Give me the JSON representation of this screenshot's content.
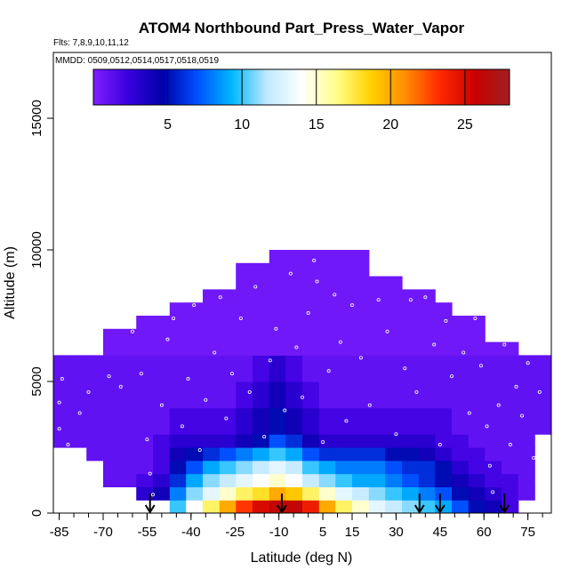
{
  "chart_data": {
    "type": "heatmap",
    "title": "ATOM4 Northbound Part_Press_Water_Vapor",
    "flights_note": "Flts: 7,8,9,10,11,12",
    "dates_note": "MMDD: 0509,0512,0514,0517,0518,0519",
    "xlabel": "Latitude (deg N)",
    "ylabel": "Altitude (m)",
    "xlim": [
      -87,
      83
    ],
    "ylim": [
      0,
      17500
    ],
    "x_ticks": [
      -85,
      -70,
      -55,
      -40,
      -25,
      -10,
      5,
      15,
      30,
      45,
      60,
      75
    ],
    "x_tick_labels": [
      "-85",
      "-70",
      "-55",
      "-40",
      "-25",
      "-10",
      "5",
      "15",
      "30",
      "45",
      "60",
      "75"
    ],
    "y_ticks": [
      0,
      5000,
      10000,
      15000
    ],
    "y_tick_labels": [
      "0",
      "5000",
      "10000",
      "15000"
    ],
    "colorbar": {
      "range": [
        0,
        28
      ],
      "ticks": [
        5,
        10,
        15,
        20,
        25
      ],
      "tick_labels": [
        "5",
        "10",
        "15",
        "20",
        "25"
      ],
      "colors": [
        "#7f1fff",
        "#3a00e0",
        "#0000a8",
        "#0050ff",
        "#00b8ff",
        "#bfe9ff",
        "#ffffff",
        "#ffff8c",
        "#ffd200",
        "#ff8c00",
        "#ff2800",
        "#c80000",
        "#a02020"
      ],
      "position": "top"
    },
    "altitude_bands_m": [
      {
        "lo": 0,
        "hi": 500,
        "values": [
          null,
          null,
          null,
          null,
          null,
          null,
          null,
          10,
          14,
          17,
          20,
          23,
          25,
          26,
          26,
          24,
          20,
          17,
          15,
          13,
          12,
          11,
          10,
          9,
          7,
          5,
          4,
          2,
          null,
          null
        ]
      },
      {
        "lo": 500,
        "hi": 1000,
        "values": [
          null,
          null,
          null,
          null,
          null,
          3,
          4,
          8,
          11,
          13,
          15,
          17,
          18,
          20,
          19,
          17,
          15,
          13,
          12,
          11,
          10,
          9,
          8,
          7,
          5,
          4,
          3,
          2,
          1,
          null
        ]
      },
      {
        "lo": 1000,
        "hi": 1500,
        "values": [
          null,
          null,
          null,
          1,
          1,
          2,
          3,
          6,
          9,
          11,
          12,
          13,
          14,
          15,
          14,
          12,
          11,
          10,
          9,
          9,
          8,
          7,
          6,
          5,
          4,
          3,
          2,
          2,
          1,
          null
        ]
      },
      {
        "lo": 1500,
        "hi": 2000,
        "values": [
          null,
          null,
          null,
          1,
          1,
          1,
          2,
          5,
          7,
          9,
          10,
          11,
          12,
          13,
          12,
          10,
          9,
          8,
          8,
          8,
          7,
          6,
          6,
          5,
          3,
          2,
          2,
          1,
          1,
          null
        ]
      },
      {
        "lo": 2000,
        "hi": 2500,
        "values": [
          null,
          null,
          1,
          1,
          1,
          1,
          2,
          4,
          5,
          6,
          7,
          8,
          9,
          10,
          9,
          7,
          6,
          6,
          6,
          6,
          5,
          5,
          4,
          3,
          2,
          2,
          1,
          1,
          1,
          null
        ]
      },
      {
        "lo": 2500,
        "hi": 3000,
        "values": [
          1,
          1,
          1,
          1,
          1,
          1,
          2,
          3,
          3,
          3,
          3,
          4,
          5,
          7,
          6,
          4,
          3,
          3,
          3,
          3,
          3,
          3,
          3,
          2,
          2,
          1,
          1,
          1,
          1,
          null
        ]
      },
      {
        "lo": 3000,
        "hi": 4000,
        "values": [
          1,
          1,
          1,
          1,
          1,
          1,
          1,
          2,
          2,
          2,
          2,
          3,
          4,
          5,
          4,
          3,
          2,
          2,
          2,
          2,
          2,
          2,
          2,
          2,
          1,
          1,
          1,
          1,
          1,
          1
        ]
      },
      {
        "lo": 4000,
        "hi": 5000,
        "values": [
          1,
          1,
          1,
          1,
          1,
          1,
          1,
          1,
          1,
          1,
          1,
          2,
          3,
          4,
          3,
          2,
          1,
          1,
          1,
          1,
          1,
          1,
          1,
          1,
          1,
          1,
          1,
          1,
          1,
          1
        ]
      },
      {
        "lo": 5000,
        "hi": 6000,
        "values": [
          1,
          1,
          1,
          1,
          1,
          1,
          1,
          1,
          1,
          1,
          1,
          1,
          2,
          3,
          2,
          1,
          1,
          1,
          1,
          1,
          1,
          1,
          1,
          1,
          1,
          1,
          1,
          1,
          1,
          1
        ]
      }
    ],
    "lat_bins_deg": [
      -87,
      -81.3,
      -75.7,
      -70,
      -64.3,
      -58.7,
      -53,
      -47.3,
      -41.7,
      -36,
      -30.3,
      -24.7,
      -19,
      -13.3,
      -7.7,
      -2,
      3.7,
      9.3,
      15,
      20.7,
      26.3,
      32,
      37.7,
      43.3,
      49,
      54.7,
      60.3,
      66,
      71.7,
      77.3,
      83
    ],
    "coverage_top_m": [
      6000,
      6000,
      6000,
      7000,
      7000,
      7500,
      7500,
      8000,
      8000,
      8500,
      8500,
      9500,
      9500,
      10000,
      10000,
      10000,
      10000,
      10000,
      10000,
      9000,
      9000,
      8500,
      8500,
      8000,
      7500,
      7500,
      6500,
      6500,
      6000,
      6000
    ],
    "flight_track_points": [
      [
        -85,
        3200
      ],
      [
        -85,
        4200
      ],
      [
        -84,
        5100
      ],
      [
        -82,
        2600
      ],
      [
        -78,
        3800
      ],
      [
        -75,
        4600
      ],
      [
        -72,
        6300
      ],
      [
        -68,
        5200
      ],
      [
        -64,
        4800
      ],
      [
        -60,
        6900
      ],
      [
        -57,
        5300
      ],
      [
        -55,
        2800
      ],
      [
        -54,
        1500
      ],
      [
        -53,
        700
      ],
      [
        -52,
        300
      ],
      [
        -50,
        4100
      ],
      [
        -48,
        6600
      ],
      [
        -46,
        7400
      ],
      [
        -43,
        3300
      ],
      [
        -41,
        5100
      ],
      [
        -39,
        7900
      ],
      [
        -37,
        2400
      ],
      [
        -35,
        4300
      ],
      [
        -32,
        6100
      ],
      [
        -30,
        8200
      ],
      [
        -28,
        3600
      ],
      [
        -26,
        5300
      ],
      [
        -23,
        7400
      ],
      [
        -20,
        4600
      ],
      [
        -18,
        8600
      ],
      [
        -15,
        2900
      ],
      [
        -13,
        5800
      ],
      [
        -11,
        7000
      ],
      [
        -8,
        3900
      ],
      [
        -6,
        9100
      ],
      [
        -4,
        6300
      ],
      [
        -2,
        4400
      ],
      [
        0,
        7600
      ],
      [
        2,
        9600
      ],
      [
        3,
        8800
      ],
      [
        5,
        2700
      ],
      [
        7,
        5400
      ],
      [
        9,
        8300
      ],
      [
        11,
        6500
      ],
      [
        13,
        3500
      ],
      [
        15,
        7900
      ],
      [
        18,
        5900
      ],
      [
        21,
        4100
      ],
      [
        24,
        8100
      ],
      [
        27,
        6900
      ],
      [
        30,
        3000
      ],
      [
        33,
        5500
      ],
      [
        35,
        8100
      ],
      [
        37,
        4600
      ],
      [
        40,
        8200
      ],
      [
        43,
        6400
      ],
      [
        45,
        2600
      ],
      [
        47,
        7300
      ],
      [
        49,
        5200
      ],
      [
        51,
        8000
      ],
      [
        53,
        6100
      ],
      [
        55,
        3800
      ],
      [
        57,
        7400
      ],
      [
        59,
        5600
      ],
      [
        61,
        3300
      ],
      [
        62,
        1800
      ],
      [
        63,
        800
      ],
      [
        65,
        4100
      ],
      [
        67,
        6400
      ],
      [
        69,
        2600
      ],
      [
        71,
        4800
      ],
      [
        73,
        3700
      ],
      [
        75,
        5700
      ],
      [
        77,
        2100
      ],
      [
        79,
        4600
      ],
      [
        80,
        1000
      ]
    ],
    "arrow_latitudes_deg": [
      -54,
      -9,
      38,
      45,
      67
    ]
  }
}
